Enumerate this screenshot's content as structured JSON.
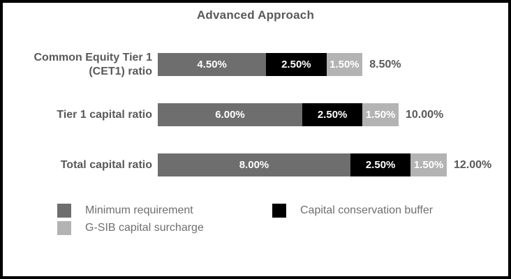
{
  "chart_data": {
    "type": "bar",
    "orientation": "horizontal",
    "stacked": true,
    "title": "Advanced Approach",
    "categories": [
      "Common Equity Tier 1\n(CET1) ratio",
      "Tier 1 capital ratio",
      "Total capital ratio"
    ],
    "series": [
      {
        "name": "Minimum requirement",
        "color": "#6e6e6e",
        "values": [
          4.5,
          6.0,
          8.0
        ],
        "labels": [
          "4.50%",
          "6.00%",
          "8.00%"
        ]
      },
      {
        "name": "Capital conservation buffer",
        "color": "#000000",
        "values": [
          2.5,
          2.5,
          2.5
        ],
        "labels": [
          "2.50%",
          "2.50%",
          "2.50%"
        ]
      },
      {
        "name": "G-SIB capital surcharge",
        "color": "#b3b3b3",
        "values": [
          1.5,
          1.5,
          1.5
        ],
        "labels": [
          "1.50%",
          "1.50%",
          "1.50%"
        ]
      }
    ],
    "totals": [
      8.5,
      10.0,
      12.0
    ],
    "total_labels": [
      "8.50%",
      "10.00%",
      "12.00%"
    ],
    "xlim": [
      0,
      14
    ],
    "grid": false,
    "legend_position": "bottom"
  },
  "colors": {
    "label_text": "#595959",
    "legend_text": "#6f6f6f",
    "segment_text": "#ffffff",
    "background": "#ffffff",
    "border": "#000000"
  }
}
